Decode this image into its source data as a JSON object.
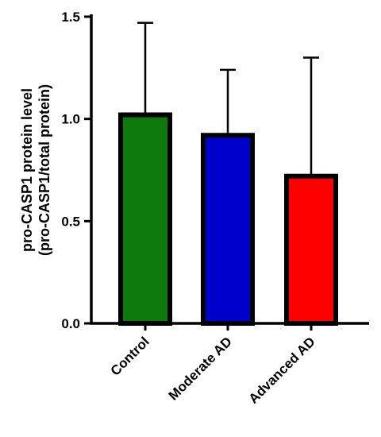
{
  "chart_data": {
    "type": "bar",
    "title": "",
    "xlabel": "",
    "ylabel_line1": "pro-CASP1 protein level",
    "ylabel_line2": "(pro-CASP1/total protein)",
    "categories": [
      "Control",
      "Moderate AD",
      "Advanced AD"
    ],
    "values": [
      1.02,
      0.92,
      0.72
    ],
    "error_upper": [
      0.45,
      0.32,
      0.58
    ],
    "colors": [
      "#0e7a0e",
      "#0000cc",
      "#ff0000"
    ],
    "ylim": [
      0,
      1.5
    ],
    "yticks": [
      0.0,
      0.5,
      1.0,
      1.5
    ],
    "ytick_labels": [
      "0.0",
      "0.5",
      "1.0",
      "1.5"
    ],
    "grid": false,
    "legend": "none"
  }
}
